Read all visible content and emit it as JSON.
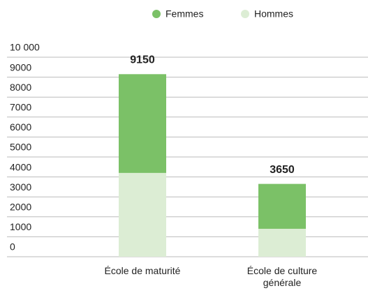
{
  "chart_data": {
    "type": "stacked_bar",
    "categories": [
      "École de maturité",
      "École de culture générale"
    ],
    "series": [
      {
        "name": "Hommes",
        "color": "#dcedd4",
        "values": [
          4200,
          1400
        ]
      },
      {
        "name": "Femmes",
        "color": "#7bc167",
        "values": [
          4950,
          2250
        ]
      }
    ],
    "totals": [
      9150,
      3650
    ],
    "ylim": [
      0,
      10000
    ],
    "yticks": [
      0,
      1000,
      2000,
      3000,
      4000,
      5000,
      6000,
      7000,
      8000,
      9000,
      {
        "value": 10000,
        "label": "10 000"
      }
    ],
    "grid": true,
    "legend": "top"
  }
}
